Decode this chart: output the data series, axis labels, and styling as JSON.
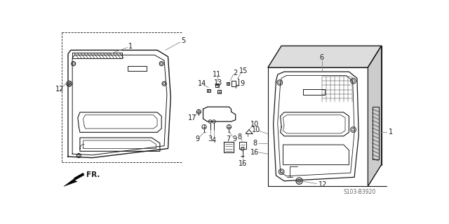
{
  "bg_color": "#ffffff",
  "line_color": "#1a1a1a",
  "gray_color": "#888888",
  "diagram_code": "S103-B3920"
}
